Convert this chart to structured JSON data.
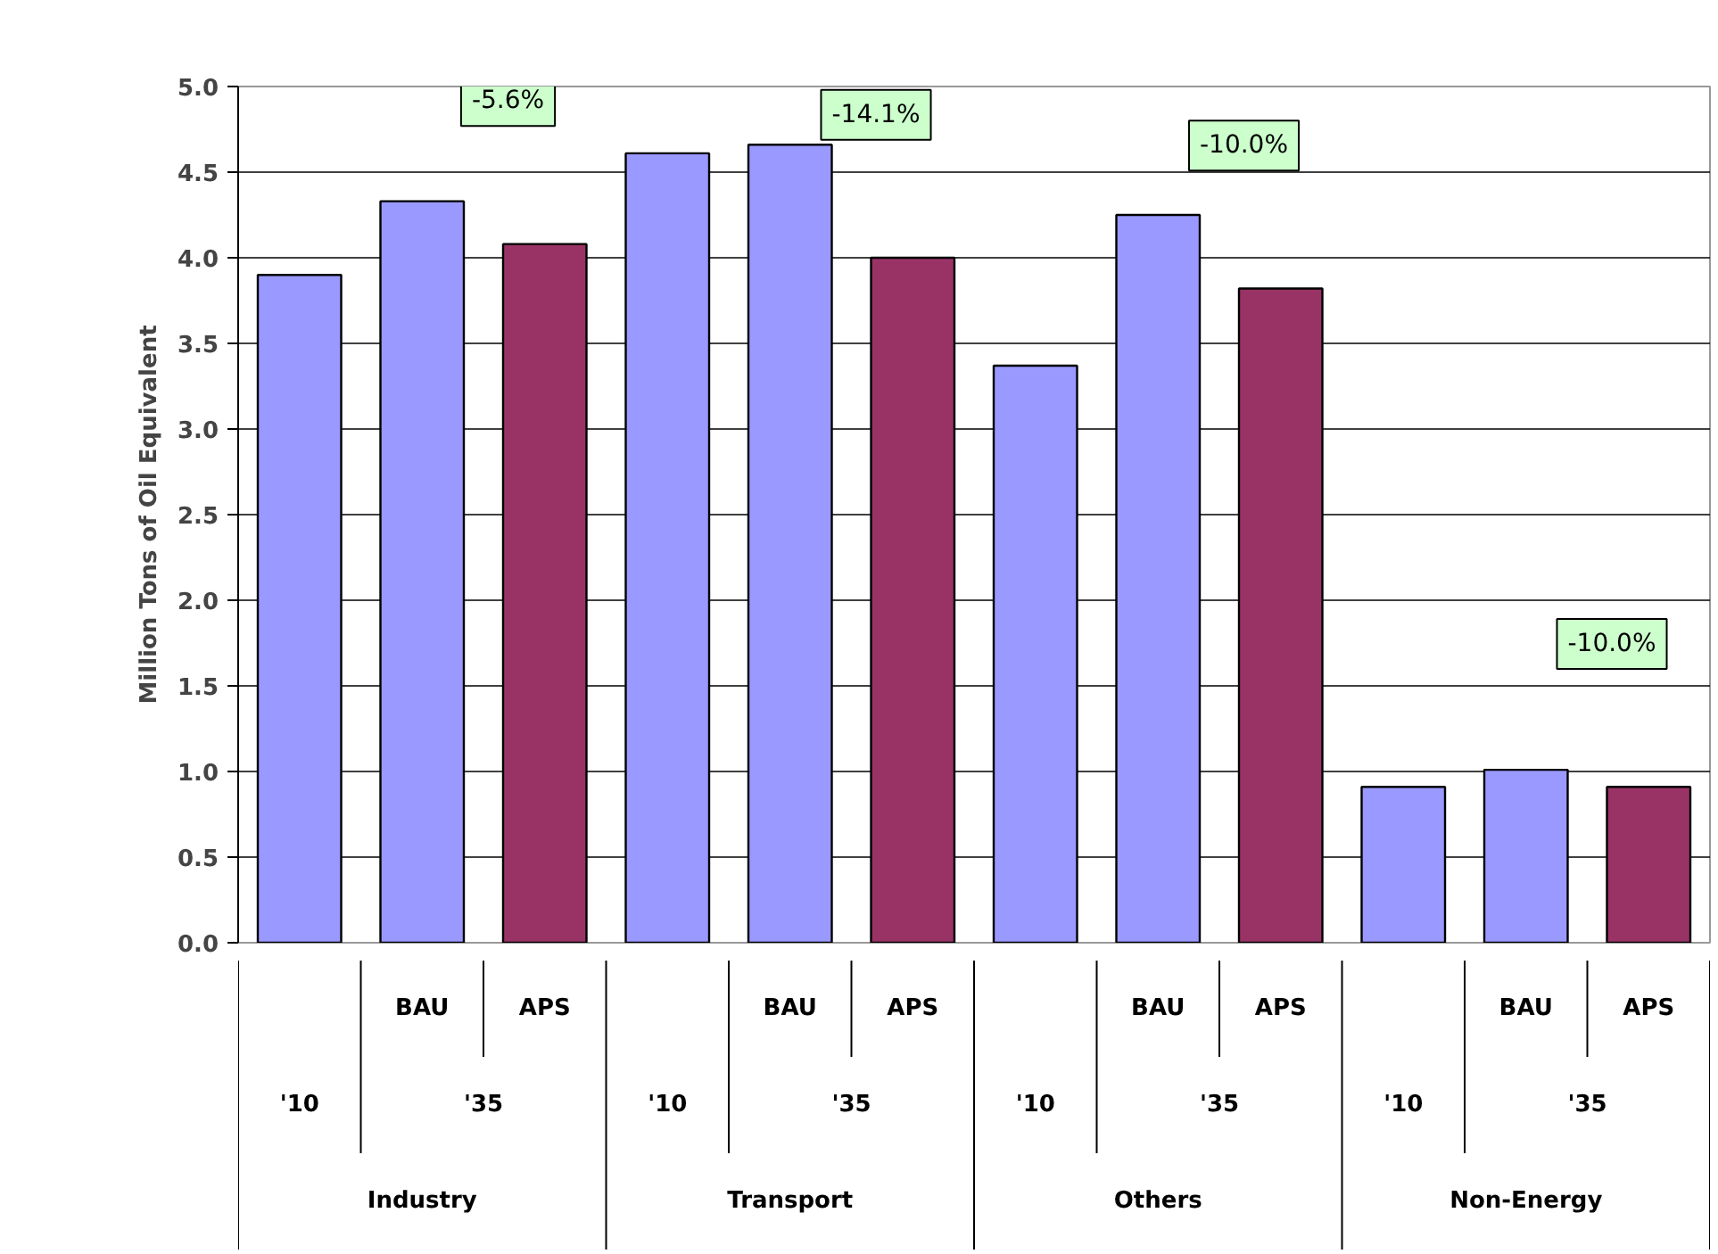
{
  "chart_data": {
    "type": "bar",
    "ylabel": "Million Tons of Oil Equivalent",
    "categories": [
      null,
      "BAU",
      "APS",
      null,
      "BAU",
      "APS",
      null,
      "BAU",
      "APS",
      null,
      "BAU",
      "APS"
    ],
    "values": [
      3.9,
      4.33,
      4.08,
      4.61,
      4.66,
      4.0,
      3.37,
      4.25,
      3.82,
      0.91,
      1.01,
      0.91
    ],
    "colors": [
      "#9999ff",
      "#9999ff",
      "#993366",
      "#9999ff",
      "#9999ff",
      "#993366",
      "#9999ff",
      "#9999ff",
      "#993366",
      "#9999ff",
      "#9999ff",
      "#993366"
    ],
    "ylim": [
      0,
      5
    ],
    "yticks": [
      {
        "value": 0,
        "label": "0.0"
      },
      {
        "value": 0.5,
        "label": "0.5"
      },
      {
        "value": 1,
        "label": "1.0"
      },
      {
        "value": 1.5,
        "label": "1.5"
      },
      {
        "value": 2,
        "label": "2.0"
      },
      {
        "value": 2.5,
        "label": "2.5"
      },
      {
        "value": 3,
        "label": "3.0"
      },
      {
        "value": 3.5,
        "label": "3.5"
      },
      {
        "value": 4,
        "label": "4.0"
      },
      {
        "value": 4.5,
        "label": "4.5"
      },
      {
        "value": 5,
        "label": "5.0"
      }
    ],
    "grid": "y",
    "annotations": [
      "-5.6%",
      "-14.1%",
      "-10.0%",
      "-10.0%",
      "'10",
      "'35",
      "Industry",
      "'10",
      "'35",
      "Transport",
      "'10",
      "'35",
      "Others",
      "'10",
      "'35",
      "Non-Energy"
    ]
  }
}
